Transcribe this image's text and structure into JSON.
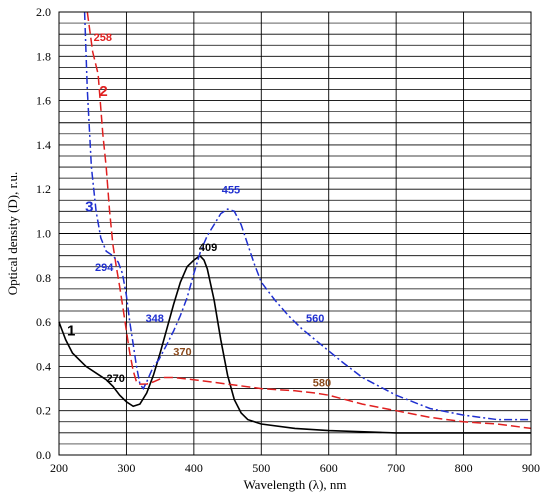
{
  "chart_data": {
    "type": "line",
    "xlabel": "Wavelength (λ), nm",
    "ylabel": "Optical density (D), r.u.",
    "xlim": [
      200,
      900
    ],
    "ylim": [
      0,
      2.0
    ],
    "x_ticks": [
      "200",
      "300",
      "400",
      "500",
      "600",
      "700",
      "800",
      "900"
    ],
    "y_ticks": [
      "0.0",
      "0.2",
      "0.4",
      "0.6",
      "0.8",
      "1.0",
      "1.2",
      "1.4",
      "1.6",
      "1.8",
      "2.0"
    ],
    "grid": true,
    "series": [
      {
        "name": "1",
        "color": "#000000",
        "style": "solid",
        "points": [
          [
            200,
            0.6
          ],
          [
            210,
            0.52
          ],
          [
            220,
            0.46
          ],
          [
            240,
            0.4
          ],
          [
            260,
            0.36
          ],
          [
            270,
            0.34
          ],
          [
            280,
            0.31
          ],
          [
            290,
            0.27
          ],
          [
            300,
            0.24
          ],
          [
            310,
            0.22
          ],
          [
            320,
            0.23
          ],
          [
            330,
            0.28
          ],
          [
            340,
            0.36
          ],
          [
            350,
            0.46
          ],
          [
            360,
            0.57
          ],
          [
            370,
            0.68
          ],
          [
            380,
            0.78
          ],
          [
            390,
            0.85
          ],
          [
            400,
            0.88
          ],
          [
            409,
            0.9
          ],
          [
            415,
            0.88
          ],
          [
            420,
            0.84
          ],
          [
            430,
            0.7
          ],
          [
            440,
            0.52
          ],
          [
            450,
            0.36
          ],
          [
            460,
            0.25
          ],
          [
            470,
            0.19
          ],
          [
            480,
            0.16
          ],
          [
            500,
            0.14
          ],
          [
            550,
            0.12
          ],
          [
            600,
            0.11
          ],
          [
            700,
            0.1
          ],
          [
            800,
            0.1
          ],
          [
            900,
            0.1
          ]
        ]
      },
      {
        "name": "2",
        "color": "#e02020",
        "style": "dashed",
        "points": [
          [
            242,
            2.0
          ],
          [
            250,
            1.82
          ],
          [
            258,
            1.72
          ],
          [
            265,
            1.45
          ],
          [
            270,
            1.3
          ],
          [
            275,
            1.1
          ],
          [
            280,
            0.95
          ],
          [
            285,
            0.85
          ],
          [
            290,
            0.76
          ],
          [
            295,
            0.66
          ],
          [
            300,
            0.56
          ],
          [
            305,
            0.46
          ],
          [
            310,
            0.38
          ],
          [
            315,
            0.33
          ],
          [
            320,
            0.32
          ],
          [
            330,
            0.32
          ],
          [
            340,
            0.33
          ],
          [
            355,
            0.35
          ],
          [
            370,
            0.35
          ],
          [
            400,
            0.34
          ],
          [
            450,
            0.32
          ],
          [
            500,
            0.3
          ],
          [
            550,
            0.29
          ],
          [
            580,
            0.28
          ],
          [
            600,
            0.27
          ],
          [
            650,
            0.23
          ],
          [
            700,
            0.2
          ],
          [
            750,
            0.17
          ],
          [
            800,
            0.15
          ],
          [
            850,
            0.14
          ],
          [
            900,
            0.12
          ]
        ]
      },
      {
        "name": "3",
        "color": "#2030d0",
        "style": "dashdot",
        "points": [
          [
            238,
            2.0
          ],
          [
            242,
            1.65
          ],
          [
            248,
            1.3
          ],
          [
            255,
            1.1
          ],
          [
            262,
            0.98
          ],
          [
            270,
            0.92
          ],
          [
            280,
            0.9
          ],
          [
            288,
            0.87
          ],
          [
            294,
            0.82
          ],
          [
            300,
            0.72
          ],
          [
            305,
            0.6
          ],
          [
            310,
            0.5
          ],
          [
            315,
            0.4
          ],
          [
            320,
            0.32
          ],
          [
            325,
            0.3
          ],
          [
            330,
            0.33
          ],
          [
            340,
            0.4
          ],
          [
            348,
            0.43
          ],
          [
            360,
            0.5
          ],
          [
            370,
            0.56
          ],
          [
            380,
            0.63
          ],
          [
            390,
            0.71
          ],
          [
            400,
            0.82
          ],
          [
            410,
            0.92
          ],
          [
            420,
            0.99
          ],
          [
            430,
            1.04
          ],
          [
            440,
            1.09
          ],
          [
            450,
            1.11
          ],
          [
            460,
            1.1
          ],
          [
            470,
            1.04
          ],
          [
            480,
            0.95
          ],
          [
            490,
            0.86
          ],
          [
            500,
            0.78
          ],
          [
            520,
            0.7
          ],
          [
            540,
            0.63
          ],
          [
            560,
            0.57
          ],
          [
            580,
            0.52
          ],
          [
            600,
            0.47
          ],
          [
            620,
            0.42
          ],
          [
            650,
            0.35
          ],
          [
            700,
            0.27
          ],
          [
            750,
            0.21
          ],
          [
            800,
            0.18
          ],
          [
            850,
            0.16
          ],
          [
            900,
            0.16
          ]
        ]
      }
    ],
    "annotations": [
      {
        "text": "258",
        "x": 265,
        "y": 1.87,
        "color": "#e02020"
      },
      {
        "text": "2",
        "x": 266,
        "y": 1.62,
        "color": "#e02020",
        "big": true
      },
      {
        "text": "3",
        "x": 245,
        "y": 1.1,
        "color": "#2030d0",
        "big": true
      },
      {
        "text": "294",
        "x": 267,
        "y": 0.83,
        "color": "#2030d0"
      },
      {
        "text": "409",
        "x": 421,
        "y": 0.92,
        "color": "#000000"
      },
      {
        "text": "455",
        "x": 455,
        "y": 1.18,
        "color": "#2030d0"
      },
      {
        "text": "348",
        "x": 342,
        "y": 0.6,
        "color": "#2030d0"
      },
      {
        "text": "560",
        "x": 580,
        "y": 0.6,
        "color": "#2030d0"
      },
      {
        "text": "1",
        "x": 218,
        "y": 0.54,
        "color": "#000000",
        "big": true
      },
      {
        "text": "270",
        "x": 284,
        "y": 0.33,
        "color": "#000000"
      },
      {
        "text": "370",
        "x": 383,
        "y": 0.45,
        "color": "#8b4a1c"
      },
      {
        "text": "580",
        "x": 590,
        "y": 0.31,
        "color": "#8b4a1c"
      }
    ]
  }
}
